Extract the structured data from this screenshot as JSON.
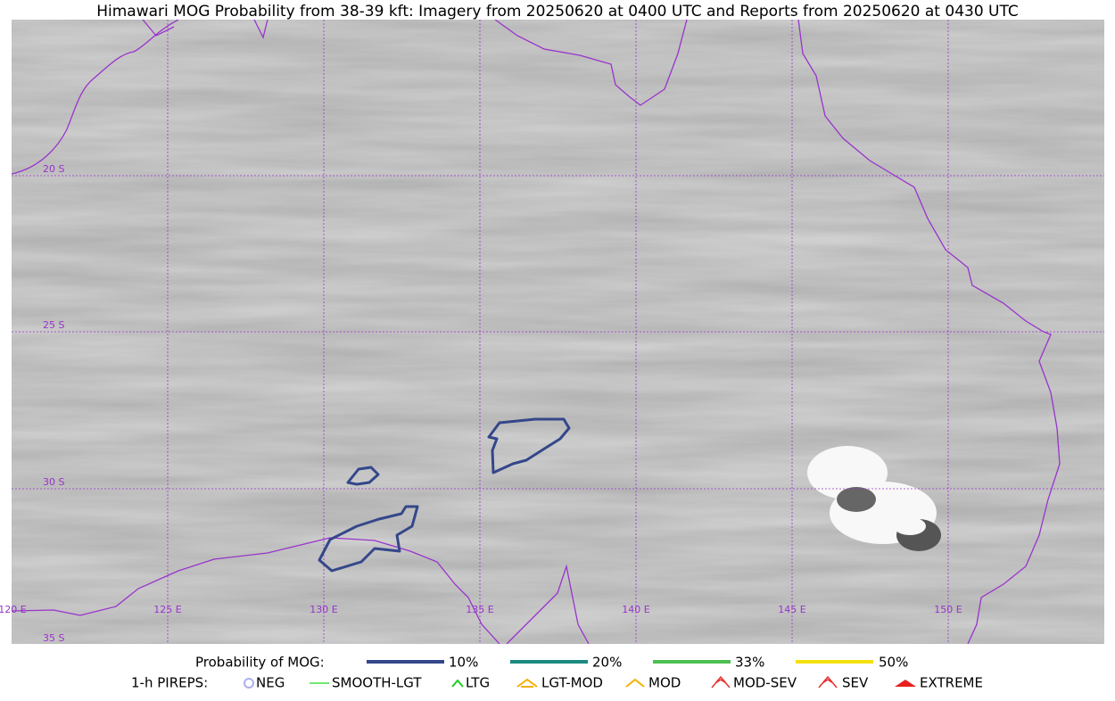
{
  "title": "Himawari MOG Probability from 38-39 kft: Imagery from 20250620 at 0400 UTC and Reports from 20250620 at 0430 UTC",
  "map": {
    "lon_labels": [
      "120 E",
      "125 E",
      "130 E",
      "135 E",
      "140 E",
      "145 E",
      "150 E"
    ],
    "lat_labels": [
      "20 S",
      "25 S",
      "30 S",
      "35 S"
    ]
  },
  "legend": {
    "mog_label": "Probability of MOG:",
    "mog_levels": [
      {
        "label": "10%",
        "color": "#34478a"
      },
      {
        "label": "20%",
        "color": "#1a8a80"
      },
      {
        "label": "33%",
        "color": "#4cc050"
      },
      {
        "label": "50%",
        "color": "#f5e010"
      }
    ],
    "pirep_label": "1-h PIREPS:",
    "pireps": [
      "NEG",
      "SMOOTH-LGT",
      "LTG",
      "LGT-MOD",
      "MOD",
      "MOD-SEV",
      "SEV",
      "EXTREME"
    ]
  }
}
